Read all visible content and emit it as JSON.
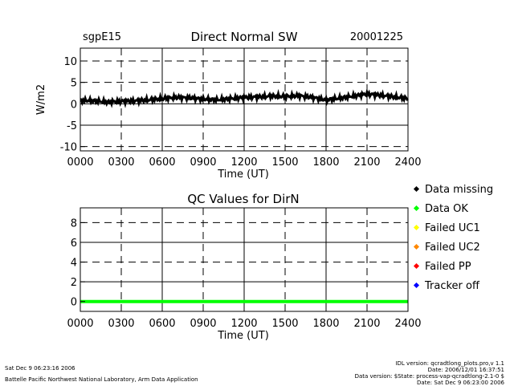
{
  "header": {
    "site": "sgpE15",
    "title": "Direct Normal SW",
    "date": "20001225"
  },
  "legend": [
    {
      "label": "Data missing",
      "color": "#000000"
    },
    {
      "label": "Data OK",
      "color": "#00ff00"
    },
    {
      "label": "Failed UC1",
      "color": "#ffff00"
    },
    {
      "label": "Failed UC2",
      "color": "#ff8800"
    },
    {
      "label": "Failed PP",
      "color": "#ff0000"
    },
    {
      "label": "Tracker off",
      "color": "#0000ff"
    }
  ],
  "footer": {
    "left_line1": "Sat Dec  9 06:23:16 2006",
    "left_line2": "Battelle Pacific Northwest National Laboratory, Arm Data Application",
    "right_line1": "IDL version: qcradtlong_plots.pro,v 1.1",
    "right_line2": "Date: 2006/12/01 16:37:51",
    "right_line3": "Data version: $State: process-vap-qcradtlong-2.1-0 $",
    "right_line4": "Date: Sat Dec  9 06:23:00 2006"
  },
  "chart_data": [
    {
      "type": "line",
      "title": "Direct Normal SW",
      "xlabel": "Time (UT)",
      "ylabel": "W/m2",
      "xlim": [
        0,
        24
      ],
      "ylim": [
        -11,
        13
      ],
      "xticks": [
        "0000",
        "0300",
        "0600",
        "0900",
        "1200",
        "1500",
        "1800",
        "2100",
        "2400"
      ],
      "yticks": [
        "10",
        "5",
        "0",
        "-5",
        "-10"
      ],
      "series": [
        {
          "color": "#000000",
          "x": [
            0,
            1,
            2,
            3,
            4,
            5,
            6,
            7,
            8,
            9,
            10,
            11,
            12,
            13,
            14,
            15,
            16,
            17,
            18,
            19,
            20,
            21,
            22,
            23,
            24
          ],
          "y": [
            0.8,
            0.7,
            0.4,
            0.6,
            0.7,
            0.9,
            1.2,
            1.5,
            1.4,
            1.1,
            0.9,
            1.2,
            1.5,
            1.6,
            1.8,
            1.7,
            1.9,
            1.5,
            0.9,
            1.3,
            1.8,
            2.3,
            2.0,
            1.6,
            1.2
          ]
        }
      ]
    },
    {
      "type": "line",
      "title": "QC Values for DirN",
      "xlabel": "Time (UT)",
      "ylabel": "",
      "xlim": [
        0,
        24
      ],
      "ylim": [
        -1,
        9.5
      ],
      "xticks": [
        "0000",
        "0300",
        "0600",
        "0900",
        "1200",
        "1500",
        "1800",
        "2100",
        "2400"
      ],
      "yticks": [
        "8",
        "6",
        "4",
        "2",
        "0"
      ],
      "series": [
        {
          "color": "#00ff00",
          "x": [
            0,
            24
          ],
          "y": [
            0,
            0
          ]
        }
      ]
    }
  ]
}
